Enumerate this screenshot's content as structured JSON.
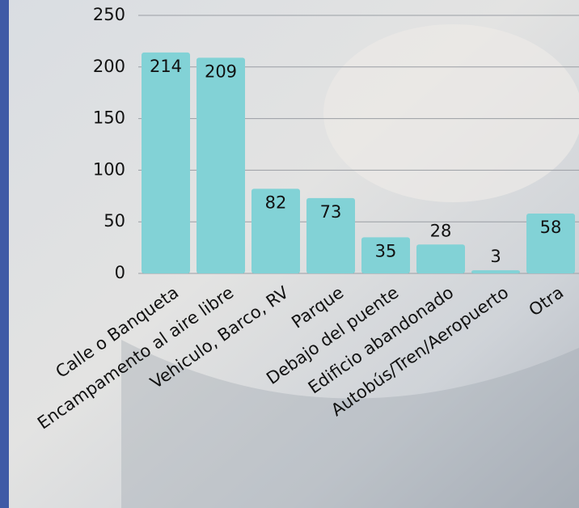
{
  "chart_data": {
    "type": "bar",
    "categories": [
      "Calle o Banqueta",
      "Encampamento al aire libre",
      "Vehiculo, Barco, RV",
      "Parque",
      "Debajo del puente",
      "Edificio abandonado",
      "Autobús/Tren/Aeropuerto",
      "Otra"
    ],
    "values": [
      214,
      209,
      82,
      73,
      35,
      28,
      3,
      58
    ],
    "color": "#82d2d6",
    "ylim": [
      0,
      250
    ],
    "yticks": [
      0,
      50,
      100,
      150,
      200,
      250
    ],
    "grid": true
  }
}
